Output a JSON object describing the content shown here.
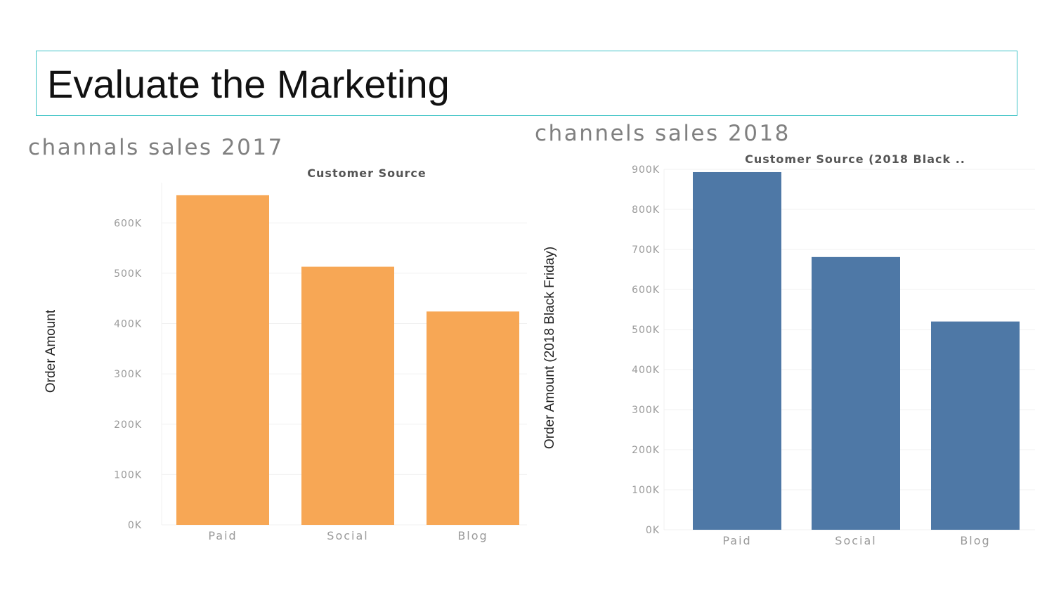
{
  "slide": {
    "title": "Evaluate the Marketing",
    "accent_color": "#3ec3c6"
  },
  "chart_data": [
    {
      "type": "bar",
      "title": "channals sales 2017",
      "subtitle": "Customer Source",
      "ylabel": "Order Amount",
      "xlabel": "",
      "categories": [
        "Paid",
        "Social",
        "Blog"
      ],
      "values": [
        655000,
        513000,
        424000
      ],
      "ylim": [
        0,
        680000
      ],
      "yticks": [
        0,
        100000,
        200000,
        300000,
        400000,
        500000,
        600000
      ],
      "ytick_labels": [
        "0K",
        "100K",
        "200K",
        "300K",
        "400K",
        "500K",
        "600K"
      ],
      "color": "#f7a755",
      "grid": true
    },
    {
      "type": "bar",
      "title": "channels sales 2018",
      "subtitle": "Customer Source (2018 Black ..",
      "ylabel": "Order Amount (2018 Black Friday)",
      "xlabel": "",
      "categories": [
        "Paid",
        "Social",
        "Blog"
      ],
      "values": [
        893000,
        681000,
        520000
      ],
      "ylim": [
        0,
        900000
      ],
      "yticks": [
        0,
        100000,
        200000,
        300000,
        400000,
        500000,
        600000,
        700000,
        800000,
        900000
      ],
      "ytick_labels": [
        "0K",
        "100K",
        "200K",
        "300K",
        "400K",
        "500K",
        "600K",
        "700K",
        "800K",
        "900K"
      ],
      "color": "#4e78a6",
      "grid": true
    }
  ]
}
